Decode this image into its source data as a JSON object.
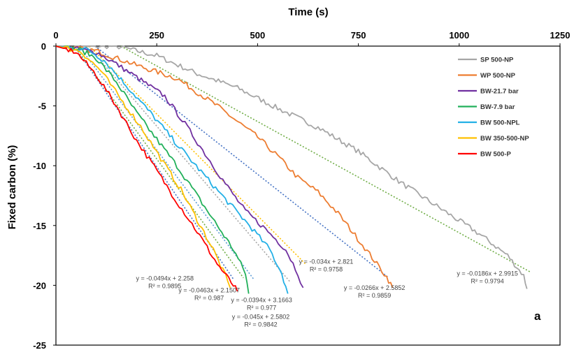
{
  "chart_data": {
    "type": "line",
    "title": "",
    "xlabel": "Time (s)",
    "ylabel": "Fixed carbon (%)",
    "xlim": [
      0,
      1250
    ],
    "ylim": [
      -25,
      0
    ],
    "x_ticks": [
      "0",
      "250",
      "500",
      "750",
      "1000",
      "1250"
    ],
    "y_ticks": [
      "0",
      "-5",
      "-10",
      "-15",
      "-20",
      "-25"
    ],
    "x_axis_position": "top",
    "grid": false,
    "legend_position": "top-right",
    "panel_label": "a",
    "series": [
      {
        "name": "SP 500-NP",
        "color": "#a6a6a6",
        "points": [
          [
            0,
            0
          ],
          [
            150,
            0
          ],
          [
            250,
            -0.8
          ],
          [
            350,
            -2.3
          ],
          [
            450,
            -3.5
          ],
          [
            550,
            -5.2
          ],
          [
            650,
            -6.8
          ],
          [
            750,
            -8.8
          ],
          [
            850,
            -11.3
          ],
          [
            950,
            -13.5
          ],
          [
            1050,
            -15.7
          ],
          [
            1120,
            -17.5
          ],
          [
            1160,
            -19.2
          ],
          [
            1168,
            -20.3
          ]
        ]
      },
      {
        "name": "WP 500-NP",
        "color": "#ed7d31",
        "points": [
          [
            0,
            0
          ],
          [
            100,
            -0.4
          ],
          [
            200,
            -1.6
          ],
          [
            300,
            -2.7
          ],
          [
            400,
            -5.0
          ],
          [
            500,
            -7.6
          ],
          [
            550,
            -9.2
          ],
          [
            600,
            -11.0
          ],
          [
            650,
            -12.2
          ],
          [
            700,
            -14.0
          ],
          [
            760,
            -16.6
          ],
          [
            820,
            -19.3
          ],
          [
            835,
            -20.2
          ]
        ]
      },
      {
        "name": "BW-21.7 bar",
        "color": "#7030a0",
        "points": [
          [
            0,
            0
          ],
          [
            100,
            -0.5
          ],
          [
            150,
            -1.5
          ],
          [
            200,
            -2.6
          ],
          [
            270,
            -4.2
          ],
          [
            320,
            -6.5
          ],
          [
            370,
            -9.0
          ],
          [
            420,
            -11.5
          ],
          [
            470,
            -13.8
          ],
          [
            520,
            -15.3
          ],
          [
            570,
            -17.0
          ],
          [
            600,
            -19.0
          ],
          [
            613,
            -20.2
          ]
        ]
      },
      {
        "name": "BW-7.9 bar",
        "color": "#21b05a",
        "points": [
          [
            0,
            0
          ],
          [
            60,
            -0.3
          ],
          [
            100,
            -1.0
          ],
          [
            150,
            -3.0
          ],
          [
            200,
            -5.6
          ],
          [
            250,
            -7.8
          ],
          [
            300,
            -10.0
          ],
          [
            350,
            -12.5
          ],
          [
            400,
            -15.0
          ],
          [
            440,
            -17.0
          ],
          [
            470,
            -19.0
          ],
          [
            478,
            -20.7
          ]
        ]
      },
      {
        "name": "BW 500-NPL",
        "color": "#23b0e6",
        "points": [
          [
            0,
            0
          ],
          [
            80,
            -0.3
          ],
          [
            120,
            -1.2
          ],
          [
            180,
            -3.5
          ],
          [
            240,
            -5.8
          ],
          [
            300,
            -8.2
          ],
          [
            360,
            -10.5
          ],
          [
            420,
            -12.8
          ],
          [
            480,
            -15.0
          ],
          [
            530,
            -17.0
          ],
          [
            560,
            -19.0
          ],
          [
            575,
            -20.7
          ]
        ]
      },
      {
        "name": "BW 350-500-NP",
        "color": "#ffc000",
        "points": [
          [
            0,
            0
          ],
          [
            60,
            -0.4
          ],
          [
            110,
            -2.0
          ],
          [
            160,
            -4.4
          ],
          [
            210,
            -6.7
          ],
          [
            260,
            -9.4
          ],
          [
            310,
            -12.0
          ],
          [
            350,
            -14.5
          ],
          [
            390,
            -17.0
          ],
          [
            420,
            -19.2
          ],
          [
            432,
            -20.2
          ]
        ]
      },
      {
        "name": "BW 500-P",
        "color": "#ff0000",
        "points": [
          [
            0,
            0
          ],
          [
            50,
            -0.5
          ],
          [
            100,
            -2.4
          ],
          [
            150,
            -5.0
          ],
          [
            200,
            -7.9
          ],
          [
            250,
            -10.4
          ],
          [
            300,
            -13.0
          ],
          [
            350,
            -15.5
          ],
          [
            400,
            -18.2
          ],
          [
            440,
            -20.0
          ],
          [
            450,
            -20.5
          ]
        ]
      }
    ],
    "fit_lines": [
      {
        "equation": "y = -0.0494x + 2.258",
        "r2": "R² = 0.9895",
        "color": "#4472c4",
        "x_range": [
          46,
          440
        ],
        "label_x": 270,
        "label_y": -19.6
      },
      {
        "equation": "y = -0.0463x + 2.1507",
        "r2": "R² = 0.987",
        "color": "#70ad47",
        "x_range": [
          46,
          465
        ],
        "label_x": 380,
        "label_y": -20.6
      },
      {
        "equation": "y = -0.045x + 2.5802",
        "r2": "R² = 0.9842",
        "color": "#5b9bd5",
        "x_range": [
          57,
          492
        ],
        "label_x": 508,
        "label_y": -22.8
      },
      {
        "equation": "y = -0.0394x + 3.1663",
        "r2": "R² = 0.977",
        "color": "#a5a5a5",
        "x_range": [
          80,
          580
        ],
        "label_x": 510,
        "label_y": -21.4
      },
      {
        "equation": "y = -0.034x + 2.821",
        "r2": "R² = 0.9758",
        "color": "#ffc000",
        "x_range": [
          83,
          620
        ],
        "label_x": 670,
        "label_y": -18.2
      },
      {
        "equation": "y = -0.0266x + 2.5852",
        "r2": "R² = 0.9859",
        "color": "#4472c4",
        "x_range": [
          97,
          825
        ],
        "label_x": 790,
        "label_y": -20.4
      },
      {
        "equation": "y = -0.0186x + 2.9915",
        "r2": "R² = 0.9794",
        "color": "#70ad47",
        "x_range": [
          161,
          1175
        ],
        "label_x": 1070,
        "label_y": -19.2
      }
    ]
  }
}
